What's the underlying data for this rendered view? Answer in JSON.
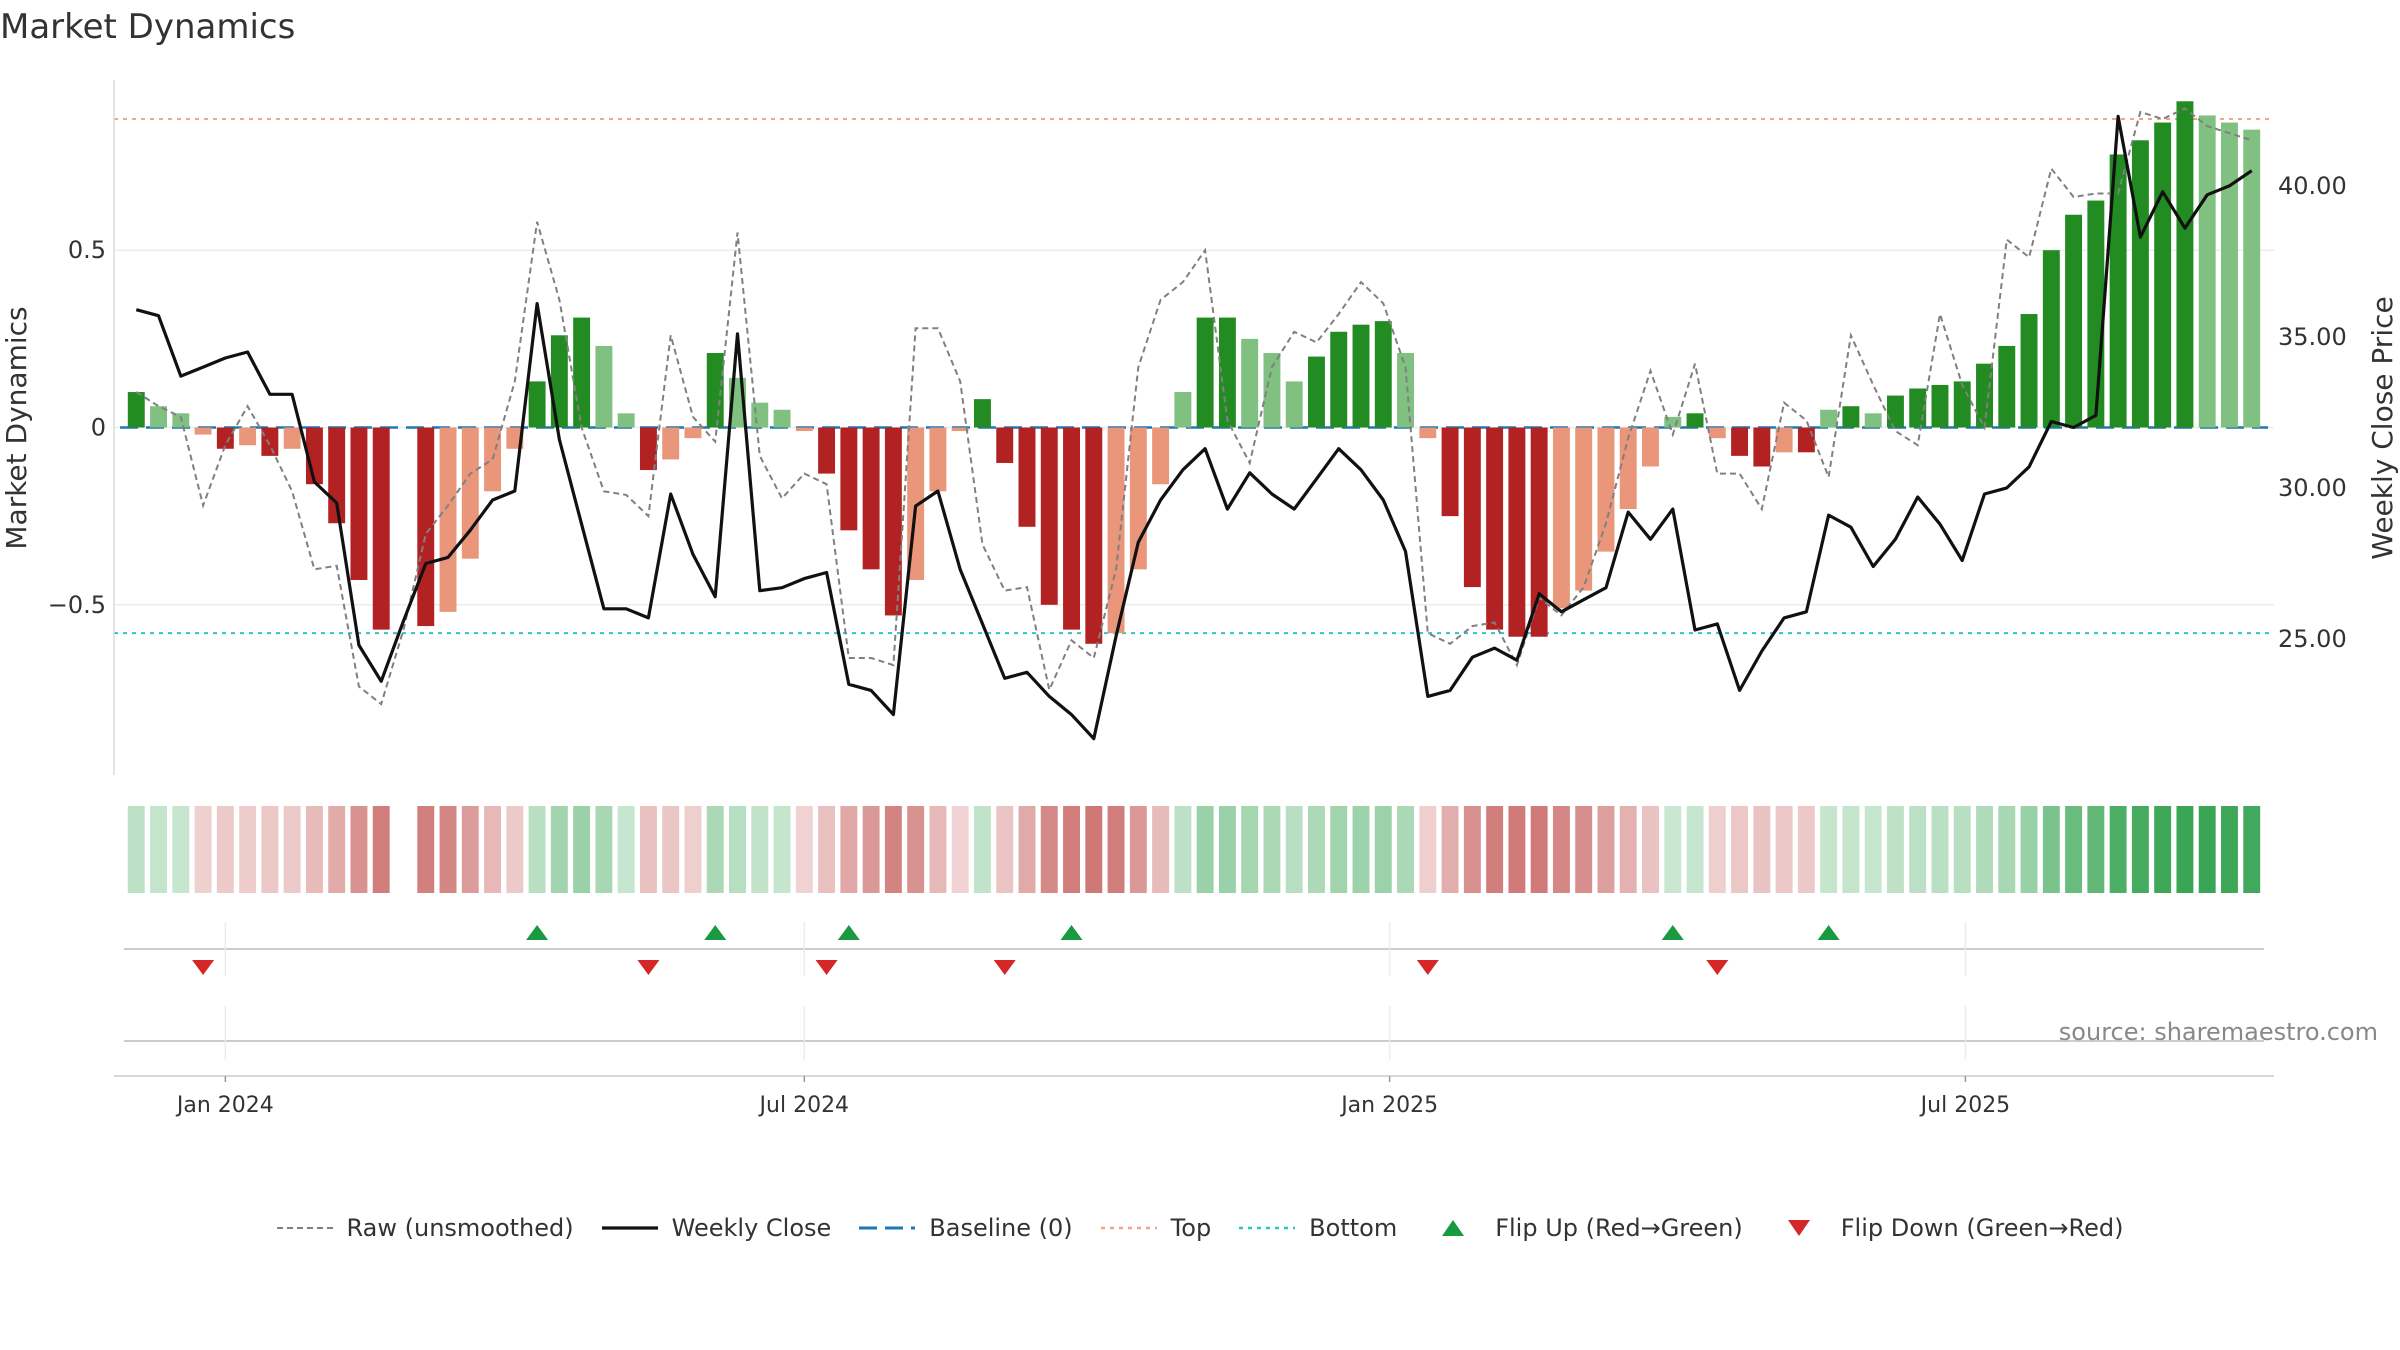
{
  "chart_data": {
    "type": "bar",
    "title": "Market Dynamics",
    "ylabel": "Market Dynamics",
    "y2label": "Weekly Close Price",
    "ylim": [
      -0.98,
      0.98
    ],
    "y2lim": [
      20.5,
      43.5
    ],
    "yticks": [
      {
        "v": 0.5,
        "t": "0.5"
      },
      {
        "v": 0,
        "t": "0"
      },
      {
        "v": -0.5,
        "t": "−0.5"
      }
    ],
    "y2ticks": [
      {
        "v": 40,
        "t": "40.00"
      },
      {
        "v": 35,
        "t": "35.00"
      },
      {
        "v": 30,
        "t": "30.00"
      },
      {
        "v": 25,
        "t": "25.00"
      }
    ],
    "xlim": [
      "2023-11-27",
      "2025-10-06"
    ],
    "xticks": [
      {
        "date": "2024-01-01",
        "label": "Jan 2024"
      },
      {
        "date": "2024-07-01",
        "label": "Jul 2024"
      },
      {
        "date": "2025-01-01",
        "label": "Jan 2025"
      },
      {
        "date": "2025-07-01",
        "label": "Jul 2025"
      }
    ],
    "start_date": "2023-12-04",
    "top_level": 0.87,
    "bottom_level": -0.58,
    "smoothed": [
      0.1,
      0.06,
      0.04,
      -0.02,
      -0.06,
      -0.05,
      -0.08,
      -0.06,
      -0.16,
      -0.27,
      -0.43,
      -0.57,
      null,
      -0.56,
      -0.52,
      -0.37,
      -0.18,
      -0.06,
      0.13,
      0.26,
      0.31,
      0.23,
      0.04,
      -0.12,
      -0.09,
      -0.03,
      0.21,
      0.14,
      0.07,
      0.05,
      -0.01,
      -0.13,
      -0.29,
      -0.4,
      -0.53,
      -0.43,
      -0.18,
      -0.01,
      0.08,
      -0.1,
      -0.28,
      -0.5,
      -0.57,
      -0.61,
      -0.58,
      -0.4,
      -0.16,
      0.1,
      0.31,
      0.31,
      0.25,
      0.21,
      0.13,
      0.2,
      0.27,
      0.29,
      0.3,
      0.21,
      -0.03,
      -0.25,
      -0.45,
      -0.57,
      -0.59,
      -0.59,
      -0.51,
      -0.46,
      -0.35,
      -0.23,
      -0.11,
      0.03,
      0.04,
      -0.03,
      -0.08,
      -0.11,
      -0.07,
      -0.07,
      0.05,
      0.06,
      0.04,
      0.09,
      0.11,
      0.12,
      0.13,
      0.18,
      0.23,
      0.32,
      0.5,
      0.6,
      0.64,
      0.77,
      0.81,
      0.86,
      0.92,
      0.88,
      0.86,
      0.84
    ],
    "raw": [
      0.1,
      0.06,
      0.03,
      -0.22,
      -0.05,
      0.06,
      -0.05,
      -0.18,
      -0.4,
      -0.39,
      -0.73,
      -0.78,
      -0.57,
      -0.3,
      -0.22,
      -0.13,
      -0.09,
      0.13,
      0.58,
      0.36,
      0.0,
      -0.18,
      -0.19,
      -0.25,
      0.26,
      0.03,
      -0.04,
      0.55,
      -0.08,
      -0.2,
      -0.13,
      -0.16,
      -0.65,
      -0.65,
      -0.67,
      0.28,
      0.28,
      0.13,
      -0.33,
      -0.46,
      -0.45,
      -0.74,
      -0.6,
      -0.65,
      -0.4,
      0.17,
      0.36,
      0.41,
      0.5,
      0.02,
      -0.1,
      0.17,
      0.27,
      0.24,
      0.32,
      0.41,
      0.35,
      0.17,
      -0.58,
      -0.61,
      -0.56,
      -0.55,
      -0.67,
      -0.48,
      -0.53,
      -0.45,
      -0.27,
      -0.03,
      0.16,
      -0.02,
      0.18,
      -0.13,
      -0.13,
      -0.23,
      0.07,
      0.02,
      -0.14,
      0.26,
      0.12,
      -0.01,
      -0.05,
      0.32,
      0.12,
      0.0,
      0.53,
      0.48,
      0.73,
      0.65,
      0.66,
      0.66,
      0.89,
      0.87,
      0.9,
      0.85,
      0.83,
      0.81
    ],
    "price": [
      35.9,
      35.7,
      33.7,
      34.0,
      34.3,
      34.5,
      33.1,
      33.1,
      30.2,
      29.5,
      24.8,
      23.6,
      25.6,
      27.5,
      27.7,
      28.6,
      29.6,
      29.9,
      36.1,
      31.6,
      28.8,
      26.0,
      26.0,
      25.7,
      29.8,
      27.8,
      26.4,
      35.1,
      26.6,
      26.7,
      27.0,
      27.2,
      23.5,
      23.3,
      22.5,
      29.4,
      29.9,
      27.3,
      25.5,
      23.7,
      23.9,
      23.1,
      22.5,
      21.7,
      25.1,
      28.2,
      29.6,
      30.6,
      31.3,
      29.3,
      30.5,
      29.8,
      29.3,
      30.3,
      31.3,
      30.6,
      29.6,
      27.9,
      23.1,
      23.3,
      24.4,
      24.7,
      24.3,
      26.5,
      25.9,
      26.3,
      26.7,
      29.2,
      28.3,
      29.3,
      25.3,
      25.5,
      23.3,
      24.6,
      25.7,
      25.9,
      29.1,
      28.7,
      27.4,
      28.3,
      29.7,
      28.8,
      27.6,
      29.8,
      30.0,
      30.7,
      32.2,
      32.0,
      32.4,
      42.3,
      38.3,
      39.8,
      38.6,
      39.7,
      40.0,
      40.5
    ],
    "flip_up_weeks": [
      18,
      26,
      32,
      42,
      69,
      76
    ],
    "flip_down_weeks": [
      3,
      23,
      31,
      39,
      58,
      71
    ],
    "legend": [
      {
        "label": "Raw (unsmoothed)",
        "style": "dashed-gray"
      },
      {
        "label": "Weekly Close",
        "style": "solid-black"
      },
      {
        "label": "Baseline (0)",
        "style": "dashed-blue"
      },
      {
        "label": "Top",
        "style": "dotted-orange"
      },
      {
        "label": "Bottom",
        "style": "dotted-cyan"
      },
      {
        "label": "Flip Up (Red→Green)",
        "style": "triangle-up-green"
      },
      {
        "label": "Flip Down (Green→Red)",
        "style": "triangle-down-red"
      }
    ],
    "legend_placement": "bottom-center",
    "grid": true
  },
  "source_note": "source: sharemaestro.com",
  "colors": {
    "strong_green": "#228b22",
    "light_green": "#80c080",
    "strong_red": "#b22222",
    "light_red": "#e9967a",
    "price_line": "#111111",
    "raw_line": "#808080",
    "baseline": "#1f77b4",
    "top_line": "#f4a582",
    "bottom_line": "#2ec4c4",
    "flip_up": "#1a9a40",
    "flip_down": "#d62728"
  }
}
